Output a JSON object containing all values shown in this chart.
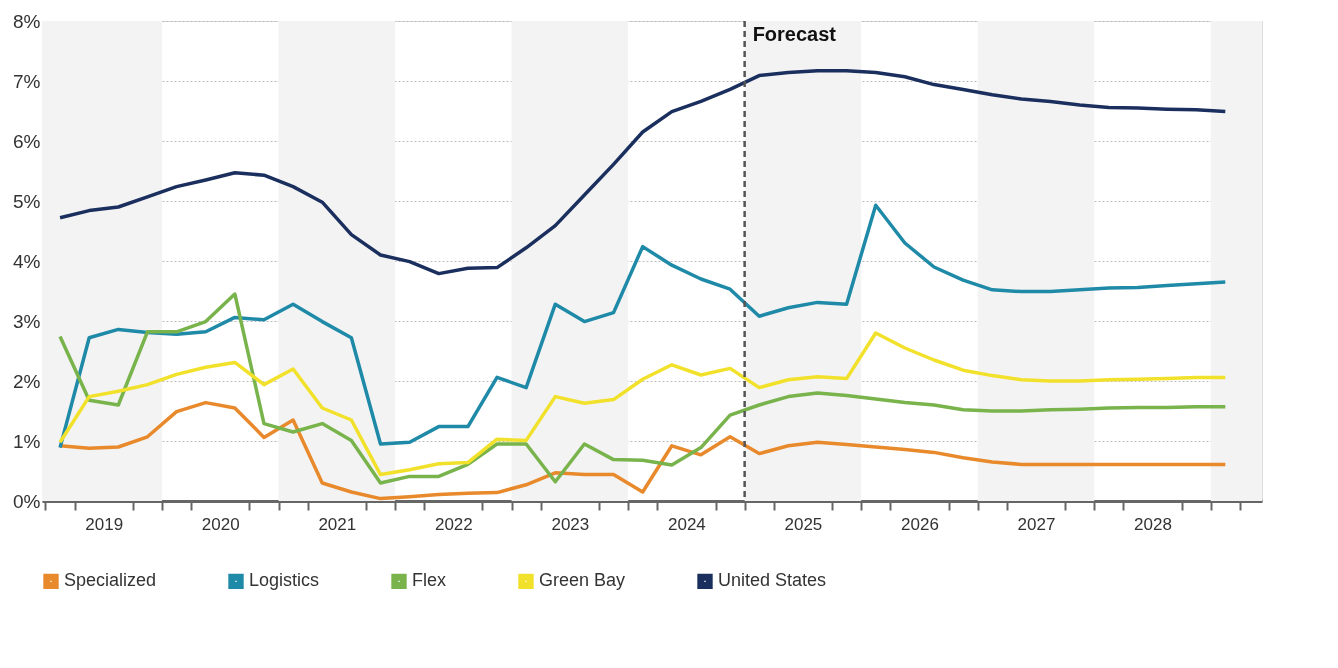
{
  "chart_data": {
    "type": "line",
    "x": [
      2019.125,
      2019.375,
      2019.625,
      2019.875,
      2020.125,
      2020.375,
      2020.625,
      2020.875,
      2021.125,
      2021.375,
      2021.625,
      2021.875,
      2022.125,
      2022.375,
      2022.625,
      2022.875,
      2023.125,
      2023.375,
      2023.625,
      2023.875,
      2024.125,
      2024.375,
      2024.625,
      2024.875,
      2025.125,
      2025.375,
      2025.625,
      2025.875,
      2026.125,
      2026.375,
      2026.625,
      2026.875,
      2027.125,
      2027.375,
      2027.625,
      2027.875,
      2028.125,
      2028.375,
      2028.625,
      2028.875,
      2029.125
    ],
    "series": [
      {
        "name": "Specialized",
        "color": "#e8892b",
        "values": [
          0.92,
          0.88,
          0.9,
          1.07,
          1.49,
          1.64,
          1.55,
          1.06,
          1.35,
          0.3,
          0.15,
          0.04,
          0.07,
          0.11,
          0.13,
          0.14,
          0.27,
          0.47,
          0.44,
          0.44,
          0.15,
          0.92,
          0.77,
          1.07,
          0.79,
          0.92,
          0.98,
          0.94,
          0.9,
          0.86,
          0.81,
          0.72,
          0.65,
          0.61,
          0.61,
          0.61,
          0.61,
          0.61,
          0.61,
          0.61,
          0.61
        ]
      },
      {
        "name": "Logistics",
        "color": "#1f8aa8",
        "values": [
          0.89,
          2.72,
          2.86,
          2.81,
          2.78,
          2.82,
          3.06,
          3.02,
          3.28,
          2.99,
          2.72,
          0.95,
          0.98,
          1.24,
          1.24,
          2.06,
          1.89,
          3.28,
          2.99,
          3.14,
          4.24,
          3.93,
          3.7,
          3.53,
          3.08,
          3.22,
          3.31,
          3.28,
          4.93,
          4.3,
          3.9,
          3.68,
          3.52,
          3.49,
          3.49,
          3.52,
          3.55,
          3.56,
          3.59,
          3.62,
          3.65
        ]
      },
      {
        "name": "Flex",
        "color": "#78b34b",
        "values": [
          2.74,
          1.68,
          1.6,
          2.82,
          2.82,
          2.99,
          3.45,
          1.29,
          1.15,
          1.29,
          1.01,
          0.3,
          0.41,
          0.41,
          0.61,
          0.95,
          0.95,
          0.32,
          0.95,
          0.69,
          0.68,
          0.6,
          0.89,
          1.43,
          1.6,
          1.74,
          1.8,
          1.76,
          1.7,
          1.64,
          1.6,
          1.52,
          1.5,
          1.5,
          1.52,
          1.53,
          1.55,
          1.56,
          1.56,
          1.57,
          1.57
        ]
      },
      {
        "name": "Green Bay",
        "color": "#f2e12a",
        "values": [
          0.98,
          1.74,
          1.83,
          1.94,
          2.11,
          2.23,
          2.31,
          1.94,
          2.2,
          1.55,
          1.35,
          0.44,
          0.52,
          0.62,
          0.64,
          1.03,
          1.01,
          1.74,
          1.63,
          1.69,
          2.03,
          2.27,
          2.1,
          2.21,
          1.89,
          2.02,
          2.07,
          2.04,
          2.8,
          2.55,
          2.35,
          2.18,
          2.09,
          2.02,
          2.0,
          2.0,
          2.02,
          2.03,
          2.04,
          2.06,
          2.06
        ]
      },
      {
        "name": "United States",
        "color": "#1b2f5e",
        "values": [
          4.72,
          4.84,
          4.9,
          5.07,
          5.24,
          5.35,
          5.47,
          5.43,
          5.24,
          4.98,
          4.44,
          4.1,
          3.99,
          3.79,
          3.88,
          3.89,
          4.22,
          4.59,
          5.1,
          5.61,
          6.15,
          6.49,
          6.66,
          6.86,
          7.09,
          7.14,
          7.17,
          7.17,
          7.14,
          7.07,
          6.94,
          6.86,
          6.77,
          6.7,
          6.66,
          6.6,
          6.56,
          6.55,
          6.53,
          6.52,
          6.49
        ]
      }
    ],
    "xlim": [
      2018.97,
      2029.44
    ],
    "xticks": [
      {
        "value": 2019,
        "label": null
      },
      {
        "value": 2019.25,
        "label": null
      },
      {
        "value": 2019.5,
        "label": "2019"
      },
      {
        "value": 2019.75,
        "label": null
      },
      {
        "value": 2020,
        "label": null
      },
      {
        "value": 2020.25,
        "label": null
      },
      {
        "value": 2020.5,
        "label": "2020"
      },
      {
        "value": 2020.75,
        "label": null
      },
      {
        "value": 2021,
        "label": null
      },
      {
        "value": 2021.25,
        "label": null
      },
      {
        "value": 2021.5,
        "label": "2021"
      },
      {
        "value": 2021.75,
        "label": null
      },
      {
        "value": 2022,
        "label": null
      },
      {
        "value": 2022.25,
        "label": null
      },
      {
        "value": 2022.5,
        "label": "2022"
      },
      {
        "value": 2022.75,
        "label": null
      },
      {
        "value": 2023,
        "label": null
      },
      {
        "value": 2023.25,
        "label": null
      },
      {
        "value": 2023.5,
        "label": "2023"
      },
      {
        "value": 2023.75,
        "label": null
      },
      {
        "value": 2024,
        "label": null
      },
      {
        "value": 2024.25,
        "label": null
      },
      {
        "value": 2024.5,
        "label": "2024"
      },
      {
        "value": 2024.75,
        "label": null
      },
      {
        "value": 2025,
        "label": null
      },
      {
        "value": 2025.25,
        "label": null
      },
      {
        "value": 2025.5,
        "label": "2025"
      },
      {
        "value": 2025.75,
        "label": null
      },
      {
        "value": 2026,
        "label": null
      },
      {
        "value": 2026.25,
        "label": null
      },
      {
        "value": 2026.5,
        "label": "2026"
      },
      {
        "value": 2026.75,
        "label": null
      },
      {
        "value": 2027,
        "label": null
      },
      {
        "value": 2027.25,
        "label": null
      },
      {
        "value": 2027.5,
        "label": "2027"
      },
      {
        "value": 2027.75,
        "label": null
      },
      {
        "value": 2028,
        "label": null
      },
      {
        "value": 2028.25,
        "label": null
      },
      {
        "value": 2028.5,
        "label": "2028"
      },
      {
        "value": 2028.75,
        "label": null
      },
      {
        "value": 2029,
        "label": null
      },
      {
        "value": 2029.25,
        "label": null
      }
    ],
    "ylim": [
      0,
      8
    ],
    "yticks": [
      {
        "value": 0,
        "label": "0%"
      },
      {
        "value": 1,
        "label": "1%"
      },
      {
        "value": 2,
        "label": "2%"
      },
      {
        "value": 3,
        "label": "3%"
      },
      {
        "value": 4,
        "label": "4%"
      },
      {
        "value": 5,
        "label": "5%"
      },
      {
        "value": 6,
        "label": "6%"
      },
      {
        "value": 7,
        "label": "7%"
      },
      {
        "value": 8,
        "label": "8%"
      }
    ],
    "ref_lines": [
      {
        "axis": "x",
        "value": 2025,
        "label": "Forecast",
        "color": "#555555",
        "line_style": "dashed"
      }
    ],
    "bands": [
      {
        "axis": "x",
        "from": 2018.97,
        "to": 2020,
        "color": "#f3f3f3"
      },
      {
        "axis": "x",
        "from": 2021,
        "to": 2022,
        "color": "#f3f3f3"
      },
      {
        "axis": "x",
        "from": 2023,
        "to": 2024,
        "color": "#f3f3f3"
      },
      {
        "axis": "x",
        "from": 2025,
        "to": 2026,
        "color": "#f3f3f3"
      },
      {
        "axis": "x",
        "from": 2027,
        "to": 2028,
        "color": "#f3f3f3"
      },
      {
        "axis": "x",
        "from": 2029,
        "to": 2029.44,
        "color": "#f3f3f3"
      }
    ],
    "grid": "y",
    "legend": "bottom",
    "marker": "none",
    "line_style": "solid"
  }
}
